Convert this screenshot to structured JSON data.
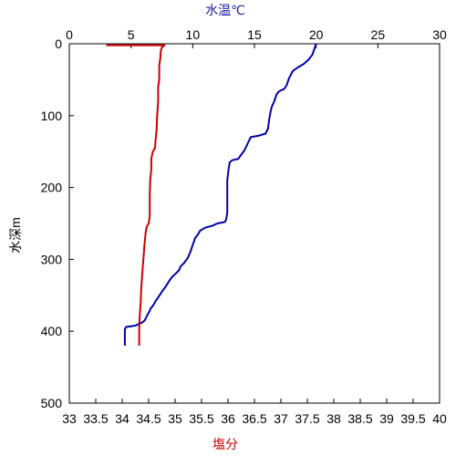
{
  "chart_data": {
    "type": "line",
    "title": "",
    "y_axis": {
      "label": "水深m",
      "range": [
        0,
        500
      ],
      "inverted": true,
      "ticks": [
        "0",
        "100",
        "200",
        "300",
        "400",
        "500"
      ],
      "tick_values": [
        0,
        100,
        200,
        300,
        400,
        500
      ]
    },
    "top_axis": {
      "label": "水温℃",
      "range": [
        0,
        30
      ],
      "ticks": [
        "0",
        "5",
        "10",
        "15",
        "20",
        "25",
        "30"
      ],
      "tick_values": [
        0,
        5,
        10,
        15,
        20,
        25,
        30
      ],
      "color": "#1a1aa6"
    },
    "bottom_axis": {
      "label": "塩分",
      "range": [
        33,
        40
      ],
      "ticks": [
        "33",
        "33.5",
        "34",
        "34.5",
        "35",
        "35.5",
        "36",
        "36.5",
        "37",
        "37.5",
        "38",
        "38.5",
        "39",
        "39.5",
        "40"
      ],
      "tick_values": [
        33,
        33.5,
        34,
        34.5,
        35,
        35.5,
        36,
        36.5,
        37,
        37.5,
        38,
        38.5,
        39,
        39.5,
        40
      ],
      "color": "#cc0000"
    },
    "grid": false,
    "series": [
      {
        "key": "temperature",
        "axis": "top",
        "color": "#0000aa",
        "points": [
          [
            20.0,
            0
          ],
          [
            19.9,
            5
          ],
          [
            19.7,
            15
          ],
          [
            19.4,
            22
          ],
          [
            19.0,
            28
          ],
          [
            18.5,
            33
          ],
          [
            18.1,
            38
          ],
          [
            17.8,
            48
          ],
          [
            17.6,
            58
          ],
          [
            17.4,
            63
          ],
          [
            17.0,
            66
          ],
          [
            16.8,
            70
          ],
          [
            16.6,
            80
          ],
          [
            16.4,
            88
          ],
          [
            16.3,
            95
          ],
          [
            16.2,
            105
          ],
          [
            16.1,
            118
          ],
          [
            15.9,
            125
          ],
          [
            15.3,
            128
          ],
          [
            14.7,
            130
          ],
          [
            14.5,
            137
          ],
          [
            14.2,
            148
          ],
          [
            13.9,
            155
          ],
          [
            13.7,
            160
          ],
          [
            13.2,
            162
          ],
          [
            13.0,
            165
          ],
          [
            12.9,
            175
          ],
          [
            12.8,
            190
          ],
          [
            12.8,
            205
          ],
          [
            12.8,
            220
          ],
          [
            12.8,
            235
          ],
          [
            12.7,
            245
          ],
          [
            12.6,
            248
          ],
          [
            12.0,
            250
          ],
          [
            11.6,
            253
          ],
          [
            11.0,
            256
          ],
          [
            10.6,
            260
          ],
          [
            10.4,
            266
          ],
          [
            10.2,
            270
          ],
          [
            10.1,
            275
          ],
          [
            10.0,
            280
          ],
          [
            9.8,
            290
          ],
          [
            9.6,
            298
          ],
          [
            9.3,
            305
          ],
          [
            9.0,
            310
          ],
          [
            8.9,
            315
          ],
          [
            8.6,
            320
          ],
          [
            8.3,
            325
          ],
          [
            8.1,
            330
          ],
          [
            7.8,
            338
          ],
          [
            7.5,
            345
          ],
          [
            7.2,
            353
          ],
          [
            7.0,
            358
          ],
          [
            6.8,
            364
          ],
          [
            6.6,
            368
          ],
          [
            6.5,
            372
          ],
          [
            6.3,
            378
          ],
          [
            6.1,
            385
          ],
          [
            5.9,
            388
          ],
          [
            5.6,
            390
          ],
          [
            5.4,
            392
          ],
          [
            5.0,
            393
          ],
          [
            4.6,
            394
          ],
          [
            4.5,
            397
          ],
          [
            4.5,
            405
          ],
          [
            4.5,
            420
          ]
        ]
      },
      {
        "key": "salinity",
        "axis": "bottom",
        "color": "#cc0000",
        "points": [
          [
            33.7,
            2
          ],
          [
            34.8,
            2
          ],
          [
            34.75,
            5
          ],
          [
            34.73,
            10
          ],
          [
            34.72,
            20
          ],
          [
            34.7,
            30
          ],
          [
            34.7,
            50
          ],
          [
            34.68,
            60
          ],
          [
            34.68,
            80
          ],
          [
            34.67,
            90
          ],
          [
            34.66,
            100
          ],
          [
            34.65,
            120
          ],
          [
            34.63,
            135
          ],
          [
            34.62,
            145
          ],
          [
            34.58,
            150
          ],
          [
            34.55,
            160
          ],
          [
            34.55,
            175
          ],
          [
            34.53,
            190
          ],
          [
            34.52,
            210
          ],
          [
            34.52,
            240
          ],
          [
            34.5,
            250
          ],
          [
            34.46,
            255
          ],
          [
            34.44,
            265
          ],
          [
            34.42,
            280
          ],
          [
            34.4,
            300
          ],
          [
            34.38,
            320
          ],
          [
            34.36,
            340
          ],
          [
            34.35,
            360
          ],
          [
            34.33,
            380
          ],
          [
            34.32,
            400
          ],
          [
            34.32,
            420
          ]
        ]
      }
    ]
  }
}
